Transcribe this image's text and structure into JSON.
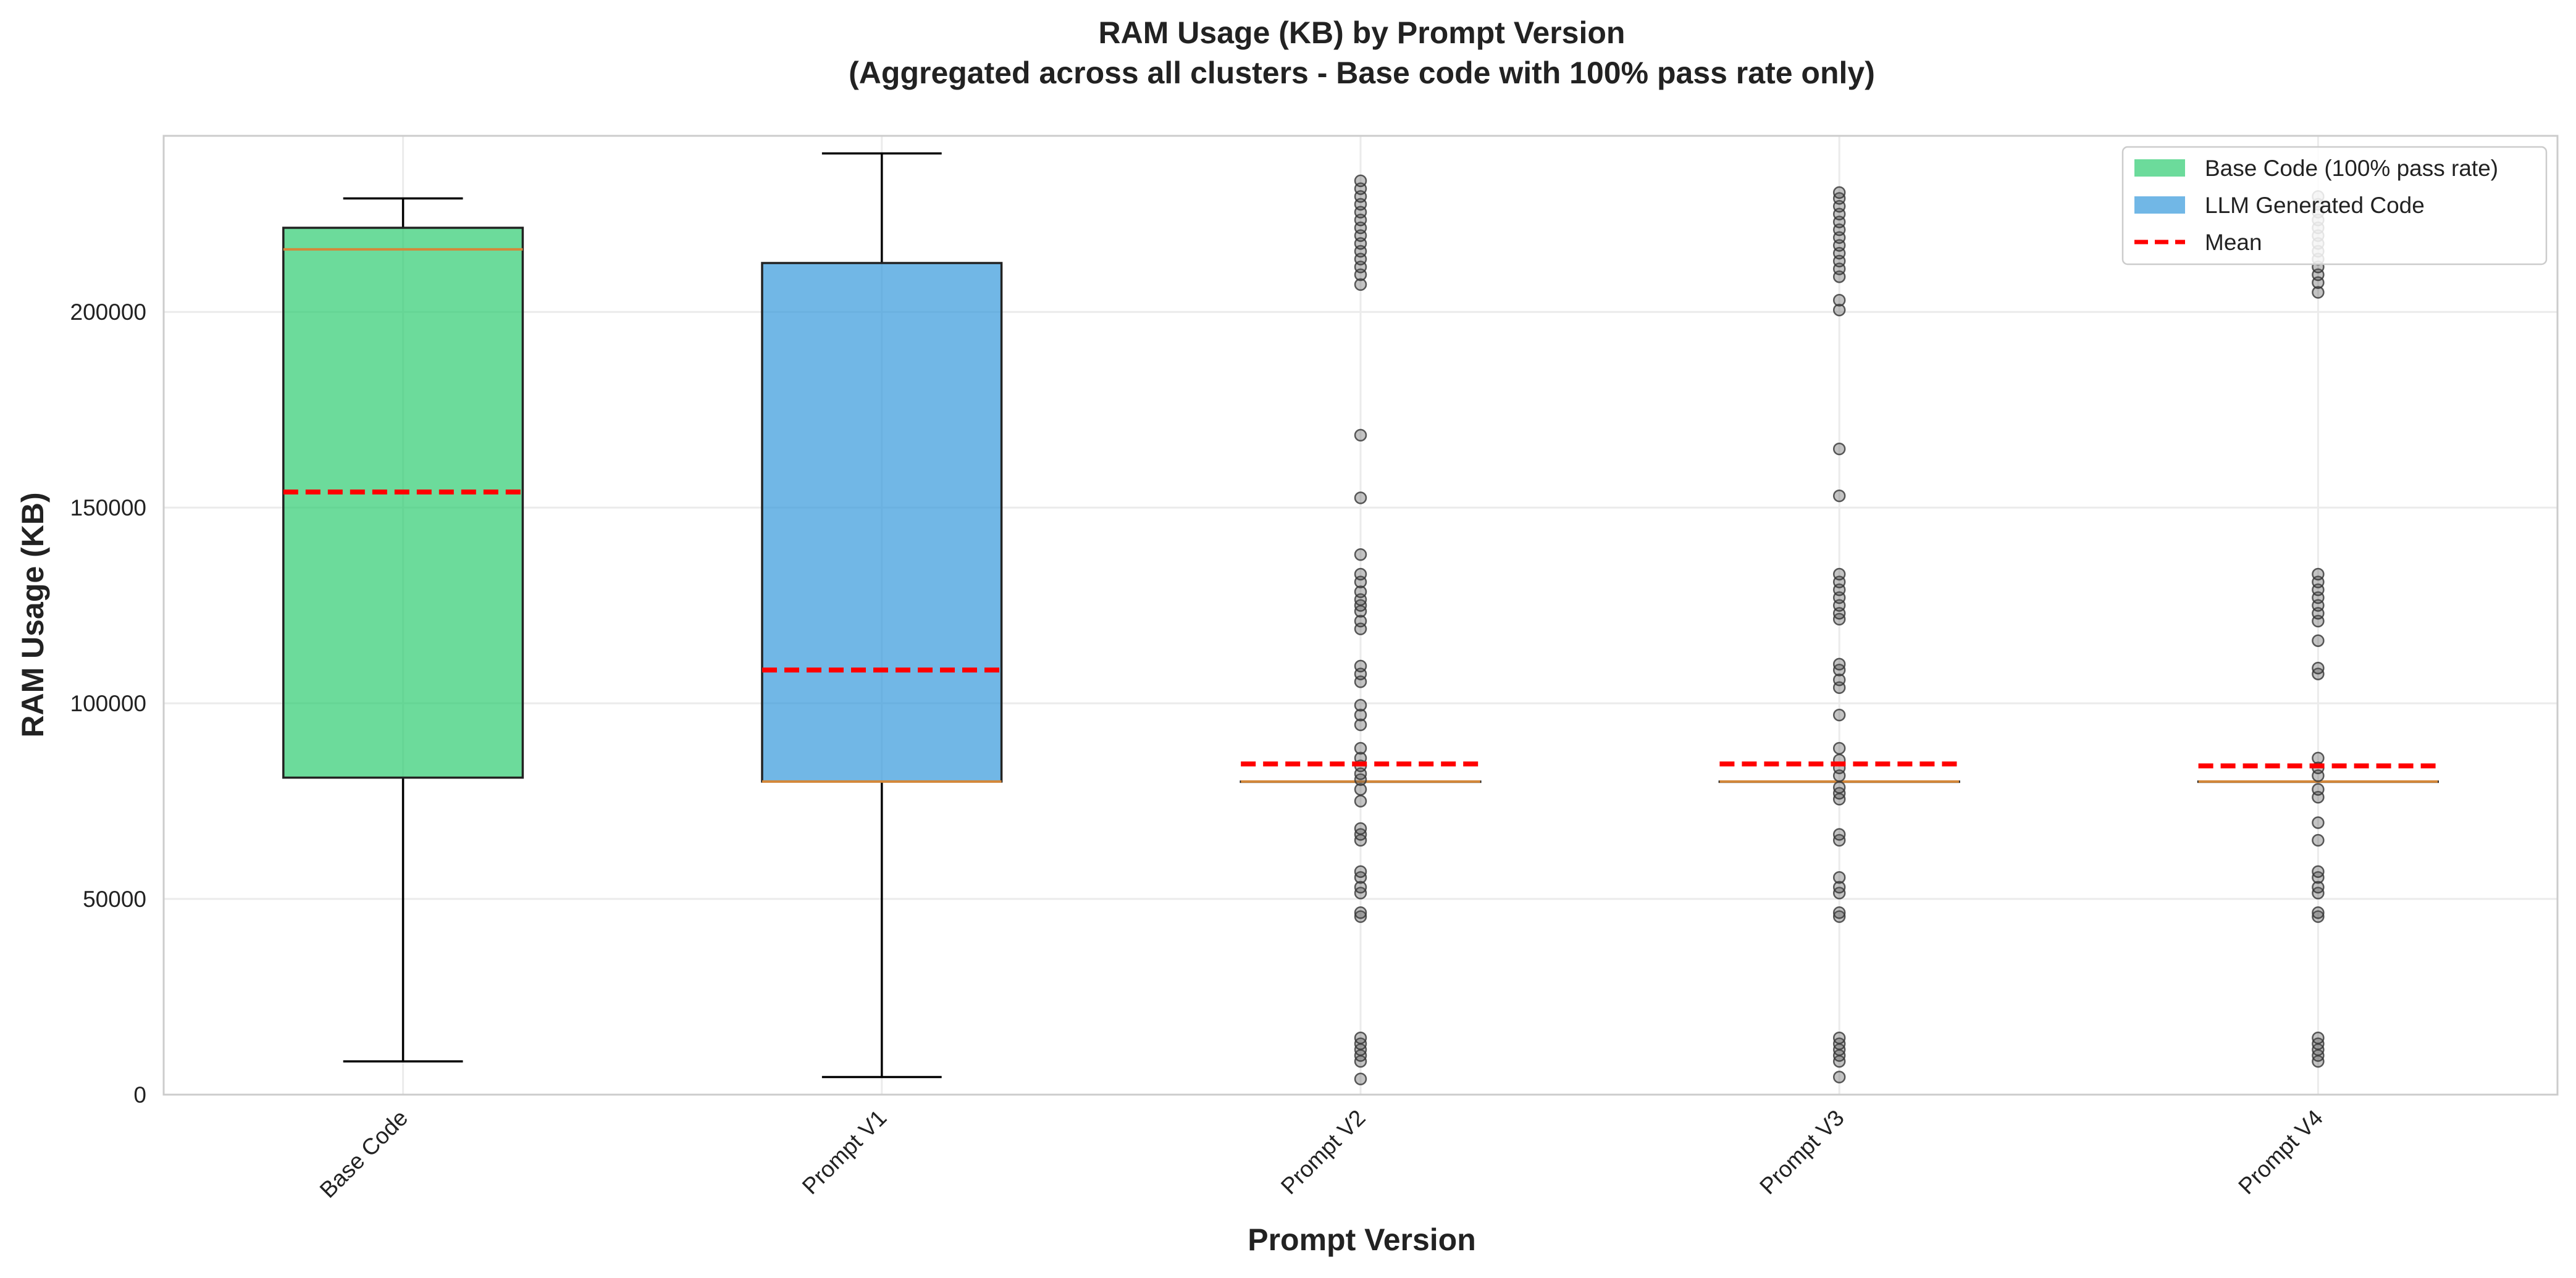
{
  "chart_data": {
    "type": "boxplot",
    "title": "RAM Usage (KB) by Prompt Version",
    "subtitle": "(Aggregated across all clusters - Base code with 100% pass rate only)",
    "xlabel": "Prompt Version",
    "ylabel": "RAM Usage (KB)",
    "ylim": [
      0,
      245000
    ],
    "yticks": [
      0,
      50000,
      100000,
      150000,
      200000
    ],
    "ytick_labels": [
      "0",
      "50000",
      "100000",
      "150000",
      "200000"
    ],
    "grid": true,
    "legend_position": "top-right",
    "legend": [
      {
        "label": "Base Code (100% pass rate)",
        "kind": "patch",
        "color": "#2ecc71"
      },
      {
        "label": "LLM Generated Code",
        "kind": "patch",
        "color": "#3498db"
      },
      {
        "label": "Mean",
        "kind": "dashed-line",
        "color": "#ff0000"
      }
    ],
    "colors": {
      "base": "#2ecc71",
      "llm": "#3498db",
      "mean": "#ff0000",
      "median": "#d4883a"
    },
    "categories": [
      "Base Code",
      "Prompt V1",
      "Prompt V2",
      "Prompt V3",
      "Prompt V4"
    ],
    "boxes": [
      {
        "name": "Base Code",
        "group": "base",
        "whislo": 8500,
        "q1": 81000,
        "median": 216000,
        "q3": 221500,
        "whishi": 229000,
        "mean": 154000,
        "fliers": []
      },
      {
        "name": "Prompt V1",
        "group": "llm",
        "whislo": 4500,
        "q1": 80000,
        "median": 80000,
        "q3": 212500,
        "whishi": 240500,
        "mean": 108500,
        "fliers": []
      },
      {
        "name": "Prompt V2",
        "group": "llm",
        "whislo": 80000,
        "q1": 80000,
        "median": 80000,
        "q3": 80000,
        "whishi": 80000,
        "mean": 84500,
        "fliers": [
          4000,
          8500,
          10000,
          11500,
          13000,
          14500,
          45500,
          46500,
          51500,
          53000,
          55500,
          57000,
          65000,
          66500,
          68000,
          75000,
          78000,
          80500,
          82000,
          84000,
          86000,
          88500,
          94500,
          97000,
          99500,
          105500,
          107500,
          109500,
          119000,
          121000,
          123500,
          125000,
          126500,
          128500,
          131000,
          133000,
          138000,
          152500,
          168500,
          207000,
          209500,
          211500,
          213500,
          215500,
          217500,
          219500,
          221500,
          223500,
          225500,
          227500,
          229500,
          231500,
          233500
        ]
      },
      {
        "name": "Prompt V3",
        "group": "llm",
        "whislo": 80000,
        "q1": 80000,
        "median": 80000,
        "q3": 80000,
        "whishi": 80000,
        "mean": 84500,
        "fliers": [
          4500,
          8500,
          10000,
          11500,
          13000,
          14500,
          45500,
          46500,
          51500,
          53000,
          55500,
          65000,
          66500,
          75500,
          77000,
          78500,
          81500,
          83500,
          85500,
          88500,
          97000,
          104000,
          106000,
          108500,
          110000,
          121500,
          123000,
          125000,
          127000,
          129000,
          131000,
          133000,
          153000,
          165000,
          200500,
          203000,
          209000,
          211000,
          213000,
          215000,
          217000,
          219000,
          221000,
          223000,
          225000,
          227000,
          229000,
          230500
        ]
      },
      {
        "name": "Prompt V4",
        "group": "llm",
        "whislo": 80000,
        "q1": 80000,
        "median": 80000,
        "q3": 80000,
        "whishi": 80000,
        "mean": 84000,
        "fliers": [
          8500,
          10000,
          11500,
          13000,
          14500,
          45500,
          46500,
          51500,
          53000,
          55500,
          57000,
          65000,
          69500,
          76000,
          78000,
          81500,
          83500,
          86000,
          107500,
          109000,
          116000,
          121000,
          123000,
          125000,
          127000,
          129000,
          131000,
          133000,
          205000,
          207500,
          209500,
          211500,
          213500,
          215500,
          217500,
          219500,
          221500,
          223500,
          225500,
          227500,
          229500
        ]
      }
    ]
  }
}
